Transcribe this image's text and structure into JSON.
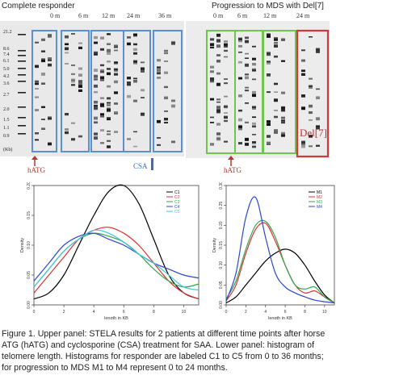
{
  "figure": {
    "left_panel": {
      "title": "Complete responder",
      "timepoints": [
        "0 m",
        "6 m",
        "12 m",
        "24 m",
        "36 m"
      ],
      "size_markers": [
        "21.2",
        "8.6",
        "7.4",
        "6.1",
        "5.0",
        "4.2",
        "3.6",
        "2.7",
        "2.0",
        "1.5",
        "1.1",
        "0.9",
        "(Kb)"
      ],
      "hatg_label": "hATG",
      "csa_label": "CSA"
    },
    "right_panel": {
      "title": "Progression to MDS with Del[7]",
      "timepoints": [
        "0 m",
        "6 m",
        "12 m",
        "24 m"
      ],
      "hatg_label": "hATG",
      "del7_label": "Del[7]"
    },
    "colors": {
      "responder_box": "#5b8fd0",
      "mds_box": "#72c452",
      "del7_box": "#d03a3a",
      "arrow": "#b03a2e",
      "csa_bar": "#3a6fb8"
    }
  },
  "chart_data": [
    {
      "type": "line",
      "xlabel": "length in KB",
      "ylabel": "Density",
      "xlim": [
        0,
        11
      ],
      "ylim": [
        0,
        0.2
      ],
      "x_ticks": [
        "0",
        "2",
        "4",
        "6",
        "8",
        "10"
      ],
      "y_ticks": [
        "0.00",
        "0.05",
        "0.10",
        "0.15",
        "0.20"
      ],
      "legend": "top-right",
      "series": [
        {
          "name": "C1",
          "color": "#000000",
          "x": [
            0,
            1,
            2,
            3,
            4,
            5,
            6,
            7,
            8,
            9,
            10,
            11
          ],
          "values": [
            0.01,
            0.02,
            0.05,
            0.1,
            0.15,
            0.19,
            0.2,
            0.17,
            0.11,
            0.05,
            0.02,
            0.01
          ]
        },
        {
          "name": "C2",
          "color": "#e03030",
          "x": [
            0,
            1,
            2,
            3,
            4,
            5,
            6,
            7,
            8,
            9,
            10,
            11
          ],
          "values": [
            0.02,
            0.05,
            0.08,
            0.11,
            0.125,
            0.13,
            0.12,
            0.1,
            0.07,
            0.04,
            0.02,
            0.01
          ]
        },
        {
          "name": "C3",
          "color": "#2fa84f",
          "x": [
            0,
            1,
            2,
            3,
            4,
            5,
            6,
            7,
            8,
            9,
            10,
            11
          ],
          "values": [
            0.03,
            0.06,
            0.09,
            0.11,
            0.12,
            0.115,
            0.105,
            0.085,
            0.06,
            0.04,
            0.03,
            0.035
          ]
        },
        {
          "name": "C4",
          "color": "#2b45d0",
          "x": [
            0,
            1,
            2,
            3,
            4,
            5,
            6,
            7,
            8,
            9,
            10,
            11
          ],
          "values": [
            0.04,
            0.07,
            0.1,
            0.115,
            0.12,
            0.11,
            0.1,
            0.085,
            0.07,
            0.06,
            0.05,
            0.045
          ]
        },
        {
          "name": "C5",
          "color": "#43c6d9",
          "x": [
            0,
            1,
            2,
            3,
            4,
            5,
            6,
            7,
            8,
            9,
            10,
            11
          ],
          "values": [
            0.03,
            0.06,
            0.09,
            0.11,
            0.125,
            0.12,
            0.105,
            0.085,
            0.07,
            0.05,
            0.03,
            0.025
          ]
        }
      ]
    },
    {
      "type": "line",
      "xlabel": "length in KB",
      "ylabel": "Density",
      "xlim": [
        0,
        11
      ],
      "ylim": [
        0,
        0.3
      ],
      "x_ticks": [
        "0",
        "2",
        "4",
        "6",
        "8",
        "10"
      ],
      "y_ticks": [
        "0.00",
        "0.05",
        "0.10",
        "0.15",
        "0.20",
        "0.25",
        "0.30"
      ],
      "legend": "top-right",
      "series": [
        {
          "name": "M1",
          "color": "#000000",
          "x": [
            0,
            1,
            2,
            3,
            4,
            5,
            6,
            7,
            8,
            9,
            10,
            11
          ],
          "values": [
            0.005,
            0.02,
            0.05,
            0.08,
            0.11,
            0.13,
            0.14,
            0.13,
            0.1,
            0.06,
            0.025,
            0.005
          ]
        },
        {
          "name": "M2",
          "color": "#e03030",
          "x": [
            0,
            1,
            2,
            3,
            4,
            5,
            6,
            7,
            8,
            9,
            10,
            11
          ],
          "values": [
            0.01,
            0.05,
            0.13,
            0.19,
            0.205,
            0.16,
            0.1,
            0.05,
            0.03,
            0.035,
            0.02,
            0.005
          ]
        },
        {
          "name": "M3",
          "color": "#2fa84f",
          "x": [
            0,
            1,
            2,
            3,
            4,
            5,
            6,
            7,
            8,
            9,
            10,
            11
          ],
          "values": [
            0.015,
            0.06,
            0.14,
            0.2,
            0.21,
            0.17,
            0.1,
            0.05,
            0.04,
            0.045,
            0.02,
            0.005
          ]
        },
        {
          "name": "M4",
          "color": "#2b45d0",
          "x": [
            0,
            1,
            2,
            3,
            4,
            5,
            6,
            7,
            8,
            9,
            10,
            11
          ],
          "values": [
            0.01,
            0.08,
            0.22,
            0.27,
            0.17,
            0.08,
            0.045,
            0.03,
            0.02,
            0.012,
            0.008,
            0.005
          ]
        }
      ]
    }
  ],
  "caption": {
    "lines": [
      "Figure 1. Upper panel: STELA results for 2 patients at different time points after horse",
      "ATG (hATG) and cyclosporine (CSA) treatment for SAA. Lower panel: histogram of",
      "telomere length. Histograms for responder are labeled C1 to C5 from 0 to 36 months;",
      "for progression to MDS M1 to M4 represent 0 to 24 months."
    ]
  }
}
